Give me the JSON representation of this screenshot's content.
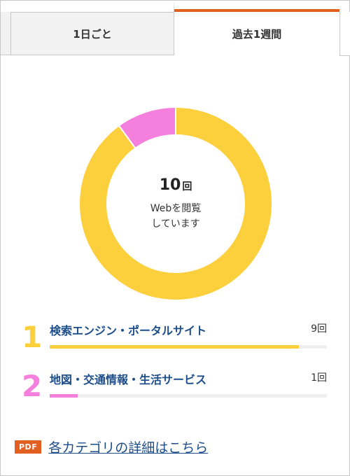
{
  "tabs": {
    "day_label": "1日ごと",
    "week_label": "過去1週間",
    "active": "week",
    "accent_color": "#e25f22"
  },
  "summary": {
    "count": "10",
    "unit": "回",
    "line1": "Webを閲覧",
    "line2": "しています"
  },
  "chart_data": {
    "type": "pie",
    "variant": "donut",
    "categories": [
      "検索エンジン・ポータルサイト",
      "地図・交通情報・生活サービス"
    ],
    "values": [
      9,
      1
    ],
    "colors": [
      "#fccf3d",
      "#f57fdc"
    ]
  },
  "items": [
    {
      "rank": "1",
      "label": "検索エンジン・ポータルサイト",
      "count_label": "9回",
      "fraction": 0.9,
      "color": "#fccf3d"
    },
    {
      "rank": "2",
      "label": "地図・交通情報・生活サービス",
      "count_label": "1回",
      "fraction": 0.1,
      "color": "#f57fdc"
    }
  ],
  "footer": {
    "badge": "PDF",
    "link_text": "各カテゴリの詳細はこちら"
  }
}
